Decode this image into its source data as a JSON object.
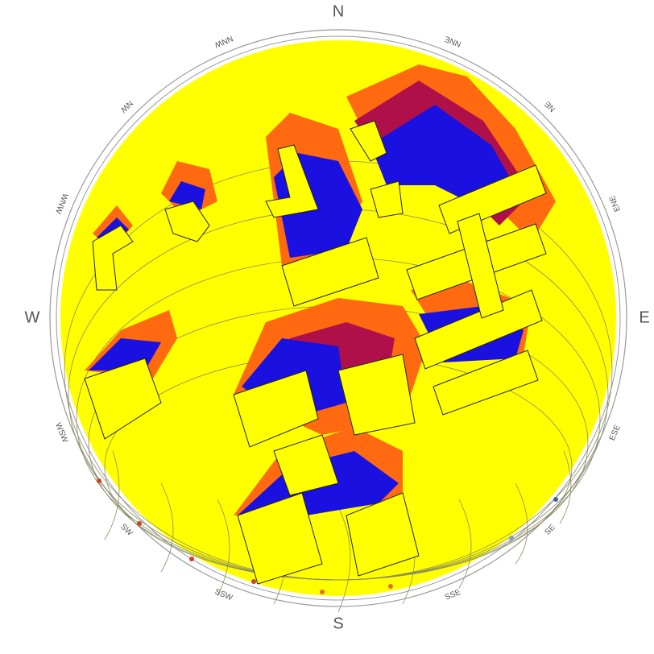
{
  "compass": {
    "labels": [
      "N",
      "NNE",
      "NE",
      "ENE",
      "E",
      "ESE",
      "SE",
      "SSE",
      "S",
      "SSW",
      "SW",
      "WSW",
      "W",
      "WNW",
      "NW",
      "NNW"
    ]
  }
}
